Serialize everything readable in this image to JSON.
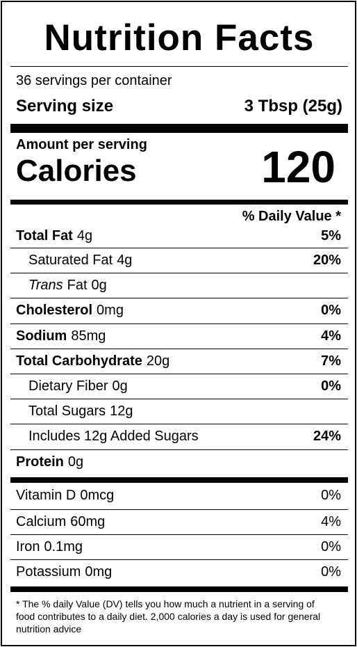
{
  "title": "Nutrition Facts",
  "servings": "36 servings per container",
  "serving_size": {
    "label": "Serving size",
    "value": "3 Tbsp (25g)"
  },
  "amount_per_serving": "Amount per serving",
  "calories": {
    "label": "Calories",
    "value": 120
  },
  "daily_value_header": "% Daily Value *",
  "nutrients": [
    {
      "name": "Total Fat",
      "amount": "4g",
      "dv": "5%",
      "bold": true
    },
    {
      "name": "Saturated Fat",
      "amount": "4g",
      "dv": "20%",
      "indent": true
    },
    {
      "name_italic": "Trans",
      "name": "Fat",
      "amount": "0g",
      "indent": true
    },
    {
      "name": "Cholesterol",
      "amount": "0mg",
      "dv": "0%",
      "bold": true
    },
    {
      "name": "Sodium",
      "amount": "85mg",
      "dv": "4%",
      "bold": true
    },
    {
      "name": "Total Carbohydrate",
      "amount": "20g",
      "dv": "7%",
      "bold": true
    },
    {
      "name": "Dietary Fiber",
      "amount": "0g",
      "dv": "0%",
      "indent": true
    },
    {
      "name": "Total Sugars",
      "amount": "12g",
      "indent": true
    },
    {
      "name": "Includes 12g Added Sugars",
      "dv": "24%",
      "indent": true
    },
    {
      "name": "Protein",
      "amount": "0g",
      "bold": true
    }
  ],
  "vitamins": [
    {
      "name": "Vitamin D",
      "amount": "0mcg",
      "dv": "0%"
    },
    {
      "name": "Calcium",
      "amount": "60mg",
      "dv": "4%"
    },
    {
      "name": "Iron",
      "amount": "0.1mg",
      "dv": "0%"
    },
    {
      "name": "Potassium",
      "amount": "0mg",
      "dv": "0%"
    }
  ],
  "footnote": "* The % daily Value (DV) tells you how much a nutrient in a serving of food contributes to a daily diet. 2,000 calories a day is used for general nutrition advice"
}
